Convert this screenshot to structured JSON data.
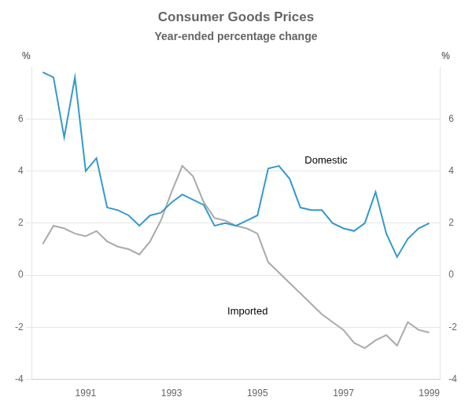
{
  "chart_data": {
    "type": "line",
    "title": "Consumer Goods Prices",
    "subtitle": "Year-ended percentage change",
    "ylabel": "%",
    "y2label": "%",
    "x": [
      1990.0,
      1990.25,
      1990.5,
      1990.75,
      1991.0,
      1991.25,
      1991.5,
      1991.75,
      1992.0,
      1992.25,
      1992.5,
      1992.75,
      1993.0,
      1993.25,
      1993.5,
      1993.75,
      1994.0,
      1994.25,
      1994.5,
      1994.75,
      1995.0,
      1995.25,
      1995.5,
      1995.75,
      1996.0,
      1996.25,
      1996.5,
      1996.75,
      1997.0,
      1997.25,
      1997.5,
      1997.75,
      1998.0,
      1998.25,
      1998.5,
      1998.75,
      1999.0
    ],
    "series": [
      {
        "name": "Domestic",
        "color": "#3399cc",
        "values": [
          7.8,
          7.6,
          5.3,
          7.6,
          4.0,
          4.5,
          2.6,
          2.5,
          2.3,
          1.9,
          2.3,
          2.4,
          2.8,
          3.1,
          2.9,
          2.7,
          1.9,
          2.0,
          1.9,
          2.1,
          2.3,
          4.1,
          4.2,
          3.7,
          2.6,
          2.5,
          2.5,
          2.0,
          1.8,
          1.7,
          2.0,
          3.2,
          1.6,
          0.7,
          1.4,
          1.8,
          2.0
        ]
      },
      {
        "name": "Imported",
        "color": "#aaaaaa",
        "values": [
          1.2,
          1.9,
          1.8,
          1.6,
          1.5,
          1.7,
          1.3,
          1.1,
          1.0,
          0.8,
          1.3,
          2.1,
          3.2,
          4.2,
          3.8,
          2.8,
          2.2,
          2.1,
          1.9,
          1.8,
          1.6,
          0.5,
          0.1,
          -0.3,
          -0.7,
          -1.1,
          -1.5,
          -1.8,
          -2.1,
          -2.6,
          -2.8,
          -2.5,
          -2.3,
          -2.7,
          -1.8,
          -2.1,
          -2.2
        ]
      }
    ],
    "annotations": [
      {
        "text": "Domestic",
        "x": 1996.1,
        "y": 4.4
      },
      {
        "text": "Imported",
        "x": 1994.3,
        "y": -1.4
      }
    ],
    "xlim": [
      1989.75,
      1999.25
    ],
    "xticks": [
      1991,
      1993,
      1995,
      1997,
      1999
    ],
    "ylim": [
      -4,
      8
    ],
    "yticks": [
      -4,
      -2,
      0,
      2,
      4,
      6
    ],
    "y2lim": [
      -4,
      8
    ],
    "y2ticks": [
      -4,
      -2,
      0,
      2,
      4,
      6
    ],
    "grid": "y"
  }
}
